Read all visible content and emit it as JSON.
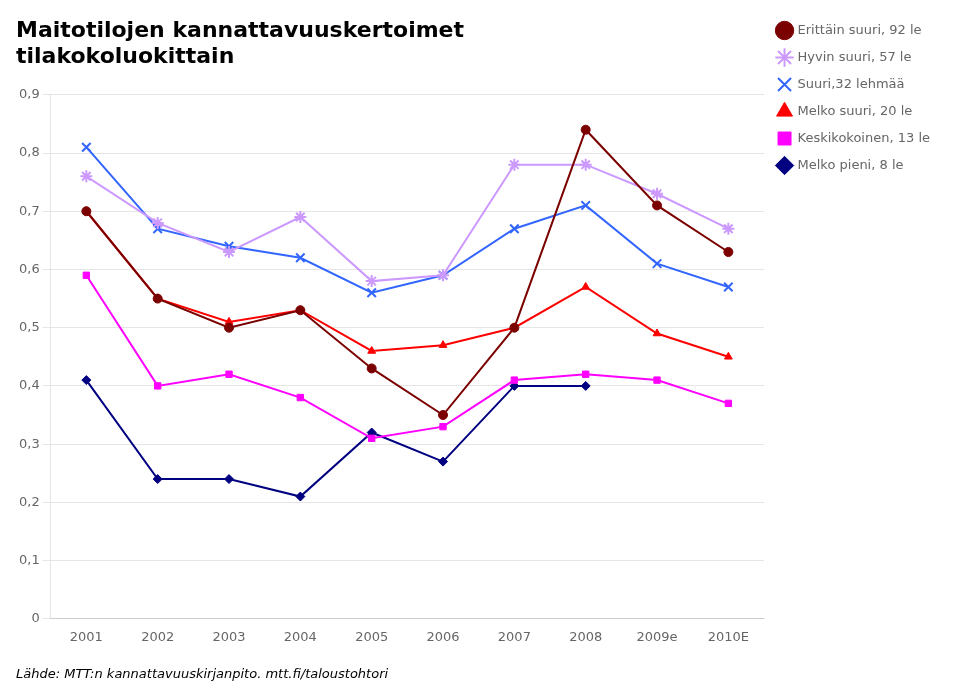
{
  "chart_data": {
    "type": "line",
    "title": [
      "Maitotilojen kannattavuuskertoimet",
      "tilakokoluokittain"
    ],
    "subtitle": "Lähde: MTT:n kannattavuuskirjanpito. mtt.fi/taloustohtori",
    "categories": [
      "2001",
      "2002",
      "2003",
      "2004",
      "2005",
      "2006",
      "2007",
      "2008",
      "2009e",
      "2010E"
    ],
    "ylim": [
      0,
      0.9
    ],
    "yticks": [
      0,
      {
        "value": 0.1,
        "label": "0,1"
      },
      {
        "value": 0.2,
        "label": "0,2"
      },
      {
        "value": 0.3,
        "label": "0,3"
      },
      {
        "value": 0.4,
        "label": "0,4"
      },
      {
        "value": 0.5,
        "label": "0,5"
      },
      {
        "value": 0.6,
        "label": "0,6"
      },
      {
        "value": 0.7,
        "label": "0,7"
      },
      {
        "value": 0.8,
        "label": "0,8"
      },
      {
        "value": 0.9,
        "label": "0,9"
      }
    ],
    "grid": true,
    "legend": "right",
    "series": [
      {
        "name": "Erittäin suuri, 92 le",
        "color": "#7B0000",
        "marker": "circle",
        "line_style": "solid",
        "values": [
          0.7,
          0.55,
          0.5,
          0.53,
          0.43,
          0.35,
          0.5,
          0.84,
          0.71,
          0.63
        ]
      },
      {
        "name": "Hyvin suuri, 57 le",
        "color": "#CC99FF",
        "marker": "star",
        "line_style": "solid",
        "values": [
          0.76,
          0.68,
          0.63,
          0.69,
          0.58,
          0.59,
          0.78,
          0.78,
          0.73,
          0.67
        ]
      },
      {
        "name": "Suuri,32 lehmää",
        "color": "#3366FF",
        "marker": "x",
        "line_style": "solid",
        "values": [
          0.81,
          0.67,
          0.64,
          0.62,
          0.56,
          0.59,
          0.67,
          0.71,
          0.61,
          0.57
        ]
      },
      {
        "name": "Melko suuri, 20 le",
        "color": "#FF0000",
        "marker": "triangle",
        "line_style": "solid",
        "values": [
          0.7,
          0.55,
          0.51,
          0.53,
          0.46,
          0.47,
          0.5,
          0.57,
          0.49,
          0.45
        ]
      },
      {
        "name": "Keskikokoinen, 13 le",
        "color": "#FF00FF",
        "marker": "square",
        "line_style": "solid",
        "values": [
          0.59,
          0.4,
          0.42,
          0.38,
          0.31,
          0.33,
          0.41,
          0.42,
          0.41,
          0.37
        ]
      },
      {
        "name": "Melko pieni, 8 le",
        "color": "#000080",
        "marker": "diamond",
        "line_style": "solid",
        "values": [
          0.41,
          0.24,
          0.24,
          0.21,
          0.32,
          0.27,
          0.4,
          0.4,
          null,
          null
        ]
      }
    ]
  }
}
